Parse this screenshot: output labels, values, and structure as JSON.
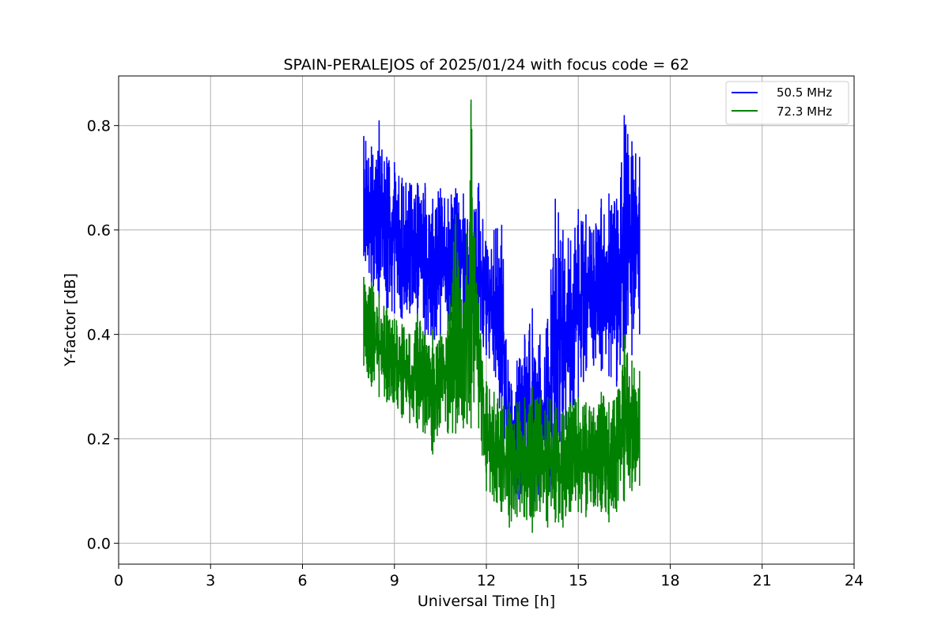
{
  "chart_data": {
    "type": "line",
    "title": "SPAIN-PERALEJOS of 2025/01/24 with focus code = 62",
    "xlabel": "Universal Time [h]",
    "ylabel": "Y-factor [dB]",
    "xlim": [
      0,
      24
    ],
    "ylim": [
      -0.04,
      0.895
    ],
    "xticks": [
      0,
      3,
      6,
      9,
      12,
      15,
      18,
      21,
      24
    ],
    "xtick_labels": [
      "0",
      "3",
      "6",
      "9",
      "12",
      "15",
      "18",
      "21",
      "24"
    ],
    "yticks": [
      0.0,
      0.2,
      0.4,
      0.6,
      0.8
    ],
    "ytick_labels": [
      "0.0",
      "0.2",
      "0.4",
      "0.6",
      "0.8"
    ],
    "grid": true,
    "legend_position": "top-right",
    "series": [
      {
        "name": "50.5 MHz",
        "color": "#0000ff",
        "x": [
          8.0,
          8.25,
          8.5,
          8.75,
          9.0,
          9.25,
          9.5,
          9.75,
          10.0,
          10.25,
          10.5,
          10.75,
          11.0,
          11.25,
          11.5,
          11.75,
          12.0,
          12.25,
          12.5,
          12.75,
          13.0,
          13.25,
          13.5,
          13.75,
          14.0,
          14.25,
          14.5,
          14.75,
          15.0,
          15.25,
          15.5,
          15.75,
          16.0,
          16.25,
          16.5,
          16.75,
          17.0
        ],
        "y_low": [
          0.55,
          0.5,
          0.47,
          0.45,
          0.44,
          0.43,
          0.44,
          0.42,
          0.4,
          0.38,
          0.4,
          0.41,
          0.43,
          0.4,
          0.38,
          0.38,
          0.36,
          0.33,
          0.22,
          0.07,
          0.07,
          0.09,
          0.08,
          0.08,
          0.09,
          0.12,
          0.2,
          0.25,
          0.26,
          0.33,
          0.34,
          0.33,
          0.32,
          0.3,
          0.34,
          0.36,
          0.4
        ],
        "y_high": [
          0.78,
          0.76,
          0.81,
          0.74,
          0.73,
          0.7,
          0.69,
          0.69,
          0.69,
          0.66,
          0.68,
          0.66,
          0.68,
          0.67,
          0.61,
          0.69,
          0.57,
          0.6,
          0.61,
          0.31,
          0.35,
          0.4,
          0.45,
          0.4,
          0.43,
          0.66,
          0.6,
          0.58,
          0.64,
          0.63,
          0.6,
          0.66,
          0.67,
          0.66,
          0.82,
          0.77,
          0.74
        ]
      },
      {
        "name": "72.3 MHz",
        "color": "#008000",
        "x": [
          8.0,
          8.25,
          8.5,
          8.75,
          9.0,
          9.25,
          9.5,
          9.75,
          10.0,
          10.25,
          10.5,
          10.75,
          11.0,
          11.25,
          11.5,
          11.75,
          12.0,
          12.25,
          12.5,
          12.75,
          13.0,
          13.25,
          13.5,
          13.75,
          14.0,
          14.25,
          14.5,
          14.75,
          15.0,
          15.25,
          15.5,
          15.75,
          16.0,
          16.25,
          16.5,
          16.75,
          17.0
        ],
        "y_low": [
          0.34,
          0.3,
          0.28,
          0.27,
          0.27,
          0.24,
          0.23,
          0.22,
          0.21,
          0.17,
          0.23,
          0.21,
          0.21,
          0.22,
          0.22,
          0.22,
          0.1,
          0.08,
          0.06,
          0.03,
          0.05,
          0.05,
          0.02,
          0.06,
          0.03,
          0.04,
          0.03,
          0.06,
          0.06,
          0.05,
          0.07,
          0.06,
          0.04,
          0.06,
          0.08,
          0.1,
          0.11
        ],
        "y_high": [
          0.51,
          0.5,
          0.48,
          0.45,
          0.43,
          0.42,
          0.4,
          0.44,
          0.4,
          0.41,
          0.4,
          0.44,
          0.63,
          0.44,
          0.85,
          0.46,
          0.31,
          0.29,
          0.28,
          0.27,
          0.27,
          0.28,
          0.3,
          0.28,
          0.28,
          0.27,
          0.25,
          0.27,
          0.28,
          0.27,
          0.26,
          0.29,
          0.27,
          0.28,
          0.4,
          0.35,
          0.33
        ]
      }
    ]
  }
}
